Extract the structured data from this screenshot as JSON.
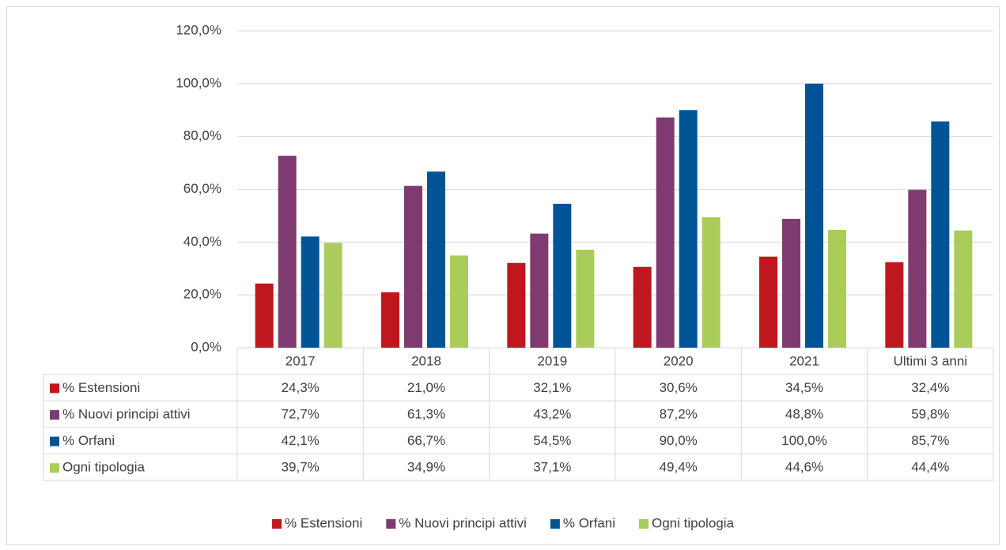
{
  "chart_data": {
    "type": "bar",
    "categories": [
      "2017",
      "2018",
      "2019",
      "2020",
      "2021",
      "Ultimi 3 anni"
    ],
    "series": [
      {
        "name": "% Estensioni",
        "color": "#c0161d",
        "values": [
          24.3,
          21.0,
          32.1,
          30.6,
          34.5,
          32.4
        ],
        "value_labels": [
          "24,3%",
          "21,0%",
          "32,1%",
          "30,6%",
          "34,5%",
          "32,4%"
        ]
      },
      {
        "name": "% Nuovi principi attivi",
        "color": "#7f3b6f",
        "values": [
          72.7,
          61.3,
          43.2,
          87.2,
          48.8,
          59.8
        ],
        "value_labels": [
          "72,7%",
          "61,3%",
          "43,2%",
          "87,2%",
          "48,8%",
          "59,8%"
        ]
      },
      {
        "name": "% Orfani",
        "color": "#005496",
        "values": [
          42.1,
          66.7,
          54.5,
          90.0,
          100.0,
          85.7
        ],
        "value_labels": [
          "42,1%",
          "66,7%",
          "54,5%",
          "90,0%",
          "100,0%",
          "85,7%"
        ]
      },
      {
        "name": "Ogni tipologia",
        "color": "#a9cc5a",
        "values": [
          39.7,
          34.9,
          37.1,
          49.4,
          44.6,
          44.4
        ],
        "value_labels": [
          "39,7%",
          "34,9%",
          "37,1%",
          "49,4%",
          "44,6%",
          "44,4%"
        ]
      }
    ],
    "ylim": [
      0,
      120
    ],
    "yticks": [
      {
        "value": 0,
        "label": "0,0%"
      },
      {
        "value": 20,
        "label": "20,0%"
      },
      {
        "value": 40,
        "label": "40,0%"
      },
      {
        "value": 60,
        "label": "60,0%"
      },
      {
        "value": 80,
        "label": "80,0%"
      },
      {
        "value": 100,
        "label": "100,0%"
      },
      {
        "value": 120,
        "label": "120,0%"
      }
    ],
    "grid": true,
    "legend": "bottom"
  }
}
